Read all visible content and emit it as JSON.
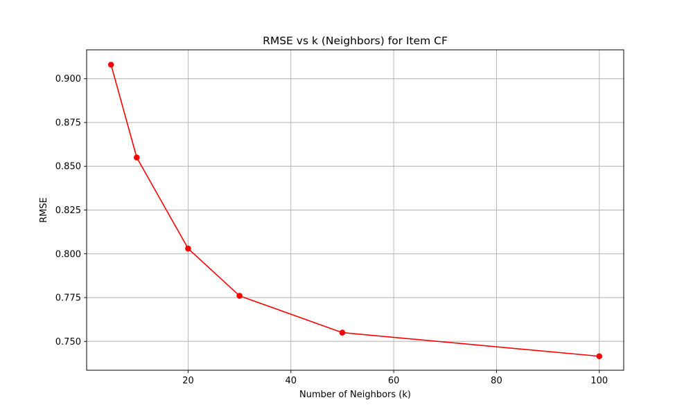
{
  "chart_data": {
    "type": "line",
    "title": "RMSE vs k (Neighbors) for Item CF",
    "xlabel": "Number of Neighbors (k)",
    "ylabel": "RMSE",
    "xlim": [
      0.25,
      104.75
    ],
    "ylim": [
      0.7335,
      0.9165
    ],
    "xticks": [
      20,
      40,
      60,
      80,
      100
    ],
    "yticks": [
      0.75,
      0.775,
      0.8,
      0.825,
      0.85,
      0.875,
      0.9
    ],
    "ytick_labels": [
      "0.750",
      "0.775",
      "0.800",
      "0.825",
      "0.850",
      "0.875",
      "0.900"
    ],
    "grid": true,
    "series": [
      {
        "x": [
          5,
          10,
          20,
          30,
          50,
          100
        ],
        "y": [
          0.908,
          0.855,
          0.803,
          0.776,
          0.755,
          0.7415
        ],
        "color": "#ff0000",
        "marker": "circle"
      }
    ]
  }
}
